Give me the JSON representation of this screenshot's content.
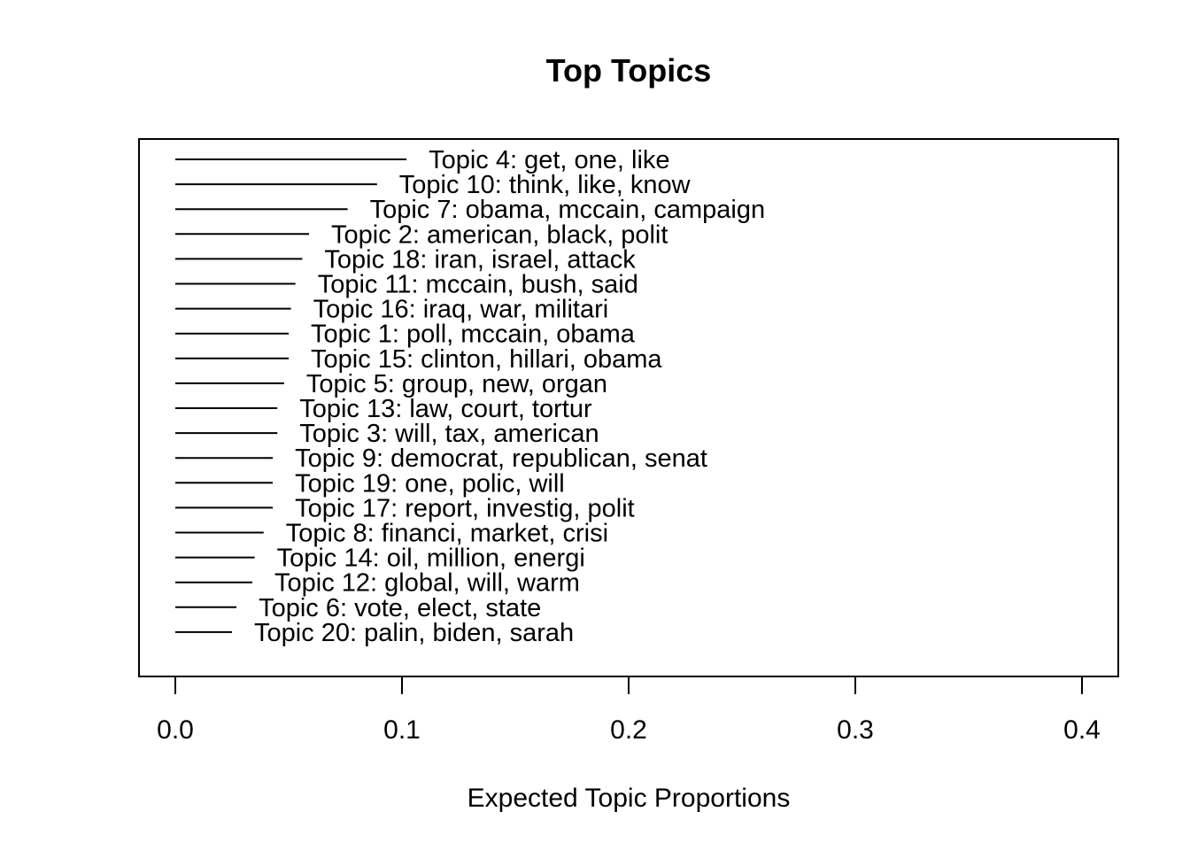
{
  "chart_data": {
    "type": "bar",
    "orientation": "horizontal",
    "title": "Top Topics",
    "xlabel": "Expected Topic Proportions",
    "ylabel": "",
    "xlim": [
      0,
      0.4
    ],
    "xticks": [
      0,
      0.1,
      0.2,
      0.3,
      0.4
    ],
    "xtick_labels": [
      "0.0",
      "0.1",
      "0.2",
      "0.3",
      "0.4"
    ],
    "grid": false,
    "categories": [
      "Topic 4: get, one, like",
      "Topic 10: think, like, know",
      "Topic 7: obama, mccain, campaign",
      "Topic 2: american, black, polit",
      "Topic 18: iran, israel, attack",
      "Topic 11: mccain, bush, said",
      "Topic 16: iraq, war, militari",
      "Topic 1: poll, mccain, obama",
      "Topic 15: clinton, hillari, obama",
      "Topic 5: group, new, organ",
      "Topic 13: law, court, tortur",
      "Topic 3: will, tax, american",
      "Topic 9: democrat, republican, senat",
      "Topic 19: one, polic, will",
      "Topic 17: report, investig, polit",
      "Topic 8: financi, market, crisi",
      "Topic 14: oil, million, energi",
      "Topic 12: global, will, warm",
      "Topic 6: vote, elect, state",
      "Topic 20: palin, biden, sarah"
    ],
    "values": [
      0.102,
      0.089,
      0.076,
      0.059,
      0.056,
      0.053,
      0.051,
      0.05,
      0.05,
      0.048,
      0.045,
      0.045,
      0.043,
      0.043,
      0.043,
      0.039,
      0.035,
      0.034,
      0.027,
      0.025
    ]
  }
}
